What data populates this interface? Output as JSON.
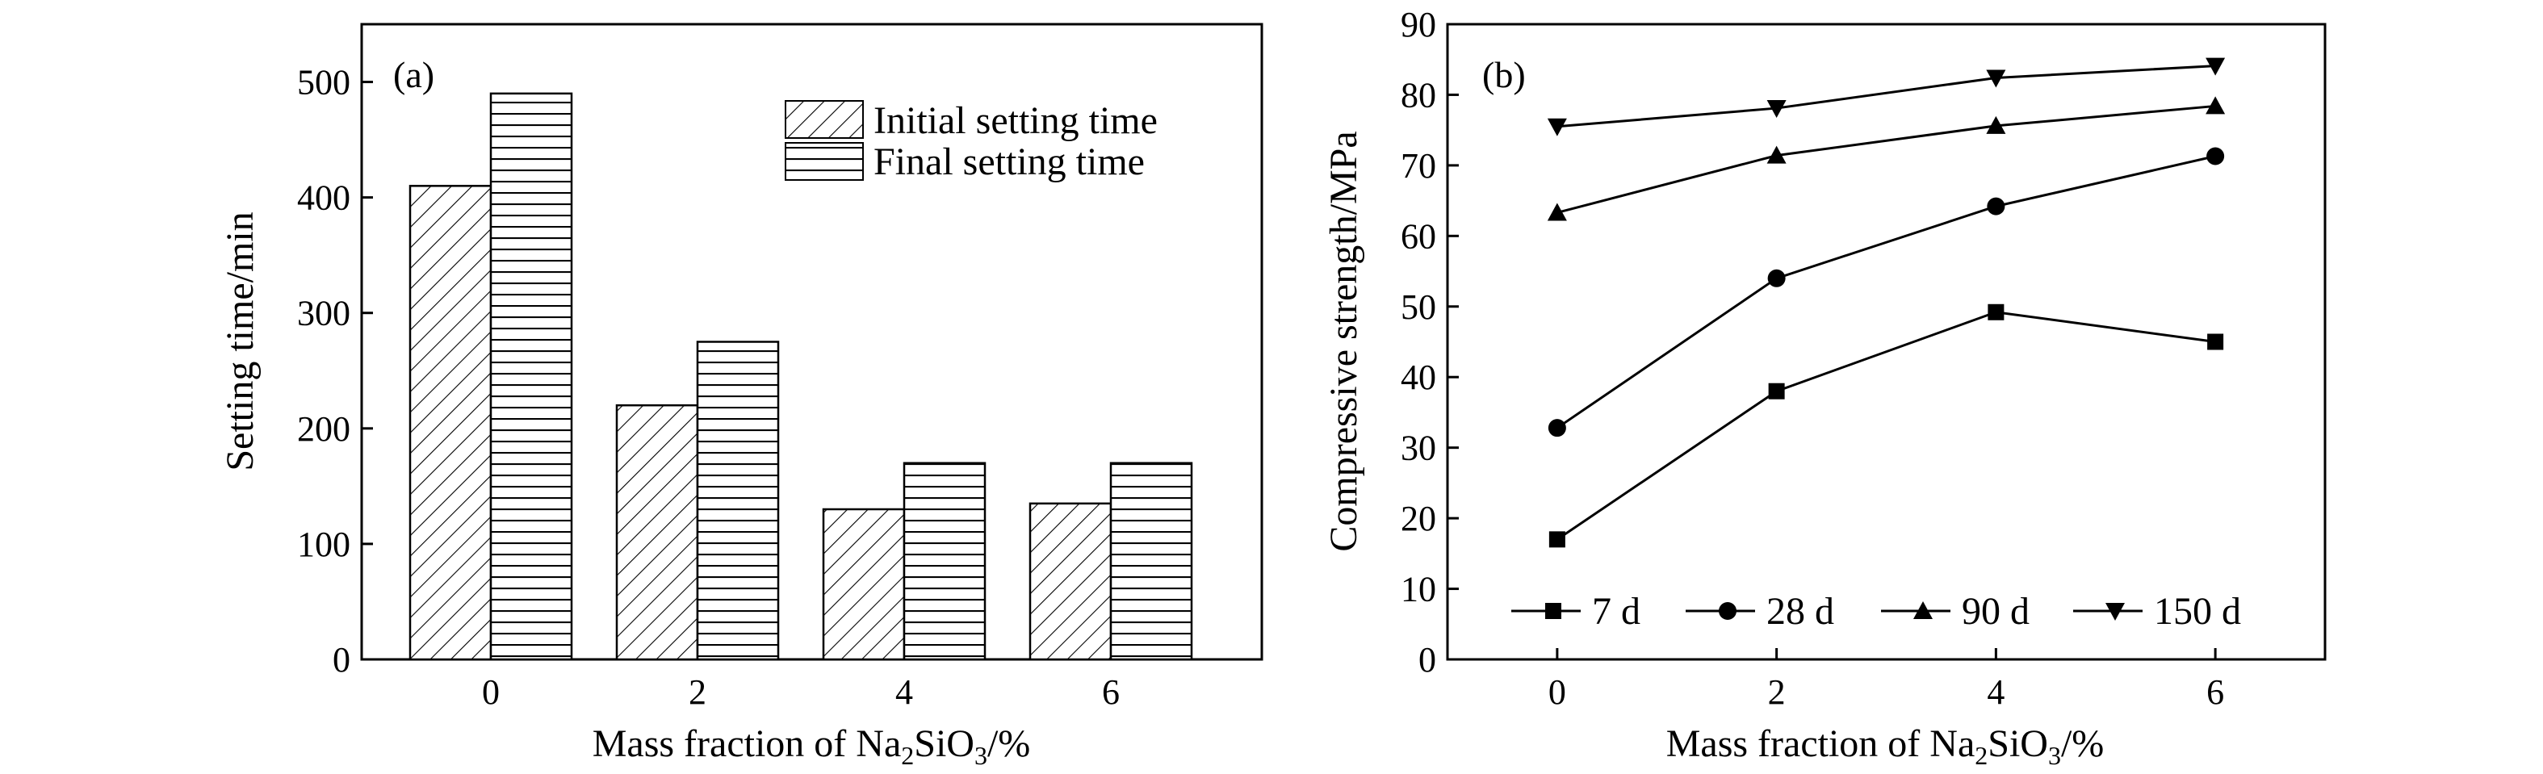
{
  "chart_data": [
    {
      "type": "bar",
      "panel_label": "(a)",
      "categories": [
        "0",
        "2",
        "4",
        "6"
      ],
      "series": [
        {
          "name": "Initial setting time",
          "values": [
            410,
            220,
            130,
            135
          ],
          "pattern": "diagonal-hatch"
        },
        {
          "name": "Final setting time",
          "values": [
            490,
            275,
            170,
            170
          ],
          "pattern": "horizontal-lines"
        }
      ],
      "xlabel": {
        "pre": "Mass fraction of Na",
        "sub1": "2",
        "mid": "SiO",
        "sub2": "3",
        "post": "/%"
      },
      "ylabel": "Setting time/min",
      "ylim": [
        0,
        550
      ],
      "yticks": [
        0,
        100,
        200,
        300,
        400,
        500
      ],
      "grid": false,
      "legend_position": "top-right"
    },
    {
      "type": "line",
      "panel_label": "(b)",
      "x": [
        0,
        2,
        4,
        6
      ],
      "series": [
        {
          "name": "7 d",
          "values": [
            17,
            38,
            49.2,
            45
          ],
          "marker": "square"
        },
        {
          "name": "28 d",
          "values": [
            32.8,
            54,
            64.2,
            71.3
          ],
          "marker": "circle"
        },
        {
          "name": "90 d",
          "values": [
            63.3,
            71.4,
            75.6,
            78.4
          ],
          "marker": "triangle-up"
        },
        {
          "name": "150 d",
          "values": [
            75.5,
            78.1,
            82.4,
            84.1
          ],
          "marker": "triangle-down"
        }
      ],
      "xlabel": {
        "pre": "Mass fraction of Na",
        "sub1": "2",
        "mid": "SiO",
        "sub2": "3",
        "post": "/%"
      },
      "ylabel": "Compressive strength/MPa",
      "xlim": [
        -1,
        7
      ],
      "xticks": [
        0,
        2,
        4,
        6
      ],
      "ylim": [
        0,
        90
      ],
      "yticks": [
        0,
        10,
        20,
        30,
        40,
        50,
        60,
        70,
        80,
        90
      ],
      "grid": false,
      "legend_position": "bottom"
    }
  ]
}
